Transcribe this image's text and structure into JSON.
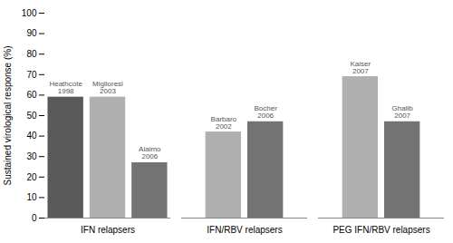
{
  "chart_data": {
    "type": "bar",
    "ylabel": "Sustained virological response (%)",
    "categories": [
      "Heathcote\n1998",
      "Miglioresi\n2003",
      "Alaimo\n2006",
      "Barbaro\n2002",
      "Bocher\n2006",
      "Kaiser\n2007",
      "Ghalib\n2007"
    ],
    "groups": [
      "IFN relapsers",
      "IFN relapsers",
      "IFN relapsers",
      "IFN/RBV relapsers",
      "IFN/RBV relapsers",
      "PEG IFN/RBV relapsers",
      "PEG IFN/RBV relapsers"
    ],
    "values": [
      59,
      59,
      27,
      42,
      47,
      69,
      47
    ],
    "colors": [
      "#595959",
      "#b0b0b0",
      "#737373",
      "#b0b0b0",
      "#737373",
      "#b0b0b0",
      "#737373"
    ],
    "ylim": [
      0,
      100
    ],
    "yticks": [
      0,
      10,
      20,
      30,
      40,
      50,
      60,
      70,
      80,
      90,
      100
    ],
    "grid": false
  }
}
